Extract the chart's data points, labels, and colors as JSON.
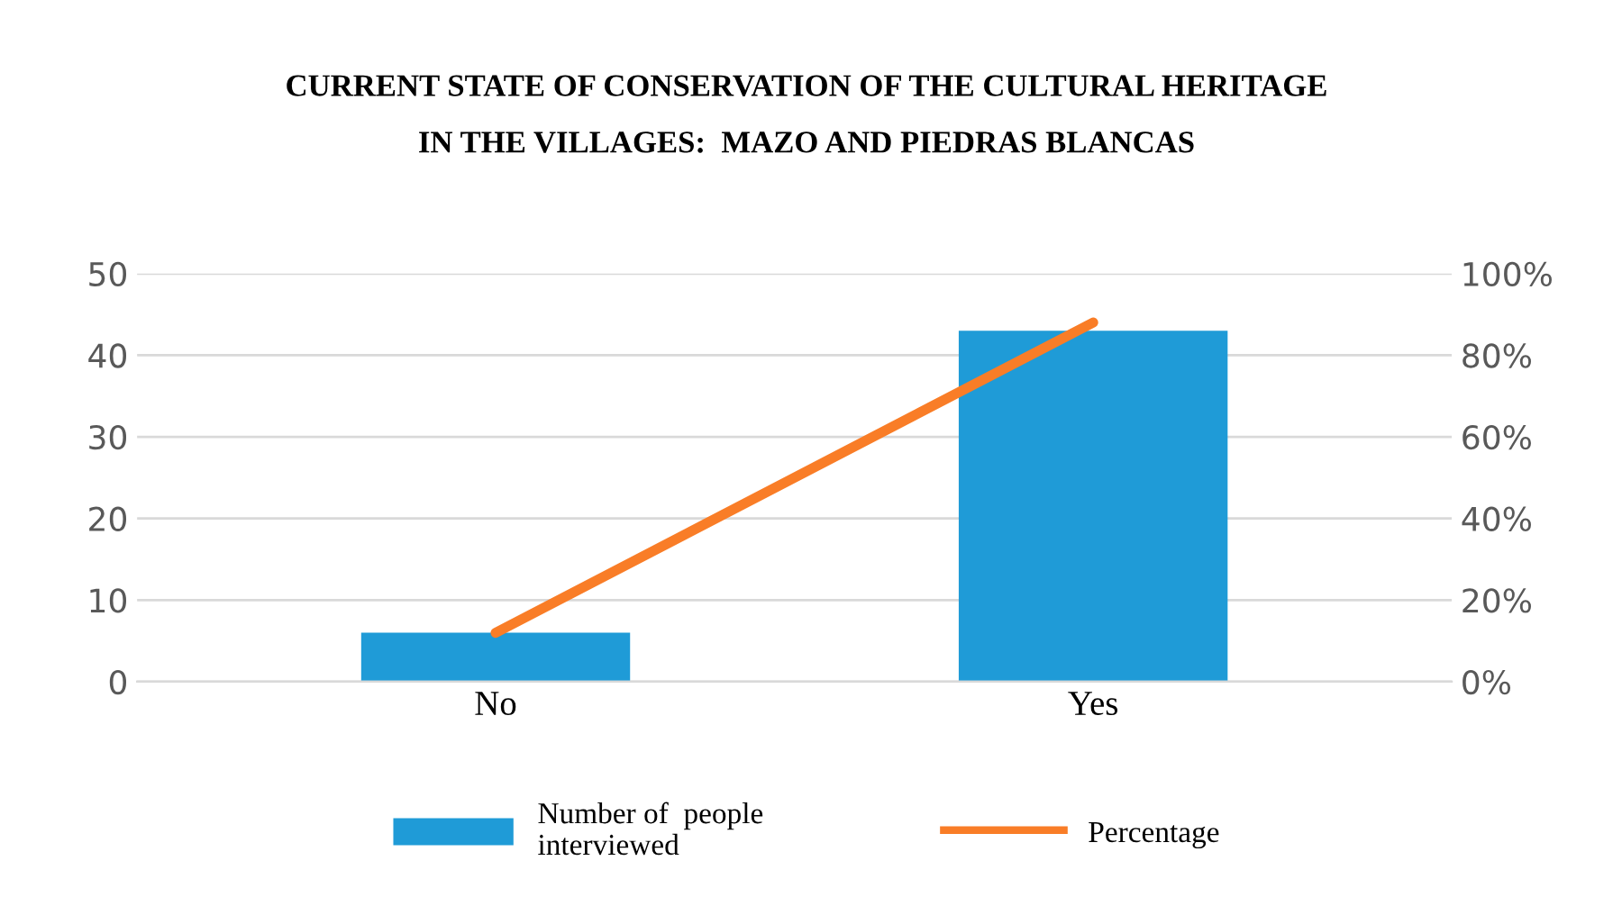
{
  "chart_data": {
    "type": "bar",
    "title": "CURRENT STATE OF CONSERVATION OF THE CULTURAL HERITAGE\nIN THE VILLAGES:  MAZO AND PIEDRAS BLANCAS",
    "categories": [
      "No",
      "Yes"
    ],
    "series": [
      {
        "name": "Number of  people\ninterviewed",
        "color": "#1f9bd7",
        "values": [
          6,
          43
        ]
      },
      {
        "name": "Percentage",
        "type": "line",
        "axis": "y2",
        "color": "#f97d27",
        "values": [
          12,
          88
        ]
      }
    ],
    "ylim": [
      0,
      50
    ],
    "yticks": [
      0,
      10,
      20,
      30,
      40,
      50
    ],
    "y2lim": [
      0,
      100
    ],
    "y2ticks": [
      {
        "value": 0,
        "label": "0%"
      },
      {
        "value": 20,
        "label": "20%"
      },
      {
        "value": 40,
        "label": "40%"
      },
      {
        "value": 60,
        "label": "60%"
      },
      {
        "value": 80,
        "label": "80%"
      },
      {
        "value": 100,
        "label": "100%"
      }
    ],
    "grid": "y",
    "legend": "bottom"
  }
}
